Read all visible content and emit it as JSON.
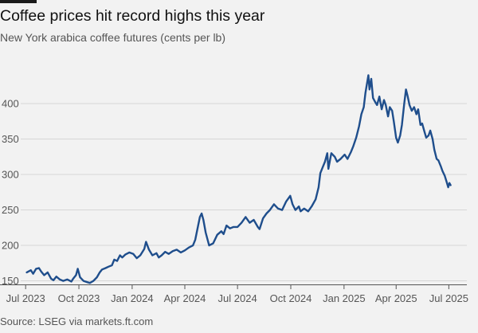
{
  "header": {
    "title": "Coffee prices hit record highs this year",
    "subtitle": "New York arabica coffee futures (cents per lb)"
  },
  "footer": {
    "source": "Source: LSEG via markets.ft.com"
  },
  "colors": {
    "line": "#1f4e8c",
    "grid": "#d6d6d6",
    "axis": "#555555",
    "background": "#f2f2f2"
  },
  "chart_data": {
    "type": "line",
    "title": "Coffee prices hit record highs this year",
    "subtitle": "New York arabica coffee futures (cents per lb)",
    "xlabel": "",
    "ylabel": "",
    "grid": true,
    "legend": "none",
    "ylim": [
      145,
      445
    ],
    "xlim": [
      "2023-06-28",
      "2025-07-17"
    ],
    "y_ticks": [
      150,
      200,
      250,
      300,
      350,
      400
    ],
    "x_ticks": [
      {
        "date": "2023-07-01",
        "label": "Jul 2023"
      },
      {
        "date": "2023-10-01",
        "label": "Oct 2023"
      },
      {
        "date": "2024-01-01",
        "label": "Jan 2024"
      },
      {
        "date": "2024-04-01",
        "label": "Apr 2024"
      },
      {
        "date": "2024-07-01",
        "label": "Jul 2024"
      },
      {
        "date": "2024-10-01",
        "label": "Oct 2024"
      },
      {
        "date": "2025-01-01",
        "label": "Jan 2025"
      },
      {
        "date": "2025-04-01",
        "label": "Apr 2025"
      },
      {
        "date": "2025-07-01",
        "label": "Jul 2025"
      }
    ],
    "series": [
      {
        "points": [
          [
            "2023-07-03",
            162
          ],
          [
            "2023-07-10",
            165
          ],
          [
            "2023-07-14",
            160
          ],
          [
            "2023-07-19",
            167
          ],
          [
            "2023-07-24",
            168
          ],
          [
            "2023-07-28",
            163
          ],
          [
            "2023-08-02",
            158
          ],
          [
            "2023-08-08",
            162
          ],
          [
            "2023-08-14",
            153
          ],
          [
            "2023-08-18",
            151
          ],
          [
            "2023-08-23",
            156
          ],
          [
            "2023-08-29",
            152
          ],
          [
            "2023-09-04",
            150
          ],
          [
            "2023-09-11",
            152
          ],
          [
            "2023-09-18",
            149
          ],
          [
            "2023-09-21",
            153
          ],
          [
            "2023-09-26",
            158
          ],
          [
            "2023-09-29",
            167
          ],
          [
            "2023-10-03",
            155
          ],
          [
            "2023-10-09",
            150
          ],
          [
            "2023-10-16",
            148
          ],
          [
            "2023-10-20",
            147
          ],
          [
            "2023-10-26",
            150
          ],
          [
            "2023-11-01",
            155
          ],
          [
            "2023-11-06",
            162
          ],
          [
            "2023-11-10",
            166
          ],
          [
            "2023-11-16",
            168
          ],
          [
            "2023-11-21",
            170
          ],
          [
            "2023-11-27",
            172
          ],
          [
            "2023-12-01",
            180
          ],
          [
            "2023-12-06",
            178
          ],
          [
            "2023-12-11",
            186
          ],
          [
            "2023-12-15",
            183
          ],
          [
            "2023-12-20",
            187
          ],
          [
            "2023-12-27",
            190
          ],
          [
            "2024-01-03",
            188
          ],
          [
            "2024-01-09",
            182
          ],
          [
            "2024-01-15",
            186
          ],
          [
            "2024-01-22",
            195
          ],
          [
            "2024-01-25",
            205
          ],
          [
            "2024-01-30",
            194
          ],
          [
            "2024-02-05",
            186
          ],
          [
            "2024-02-12",
            189
          ],
          [
            "2024-02-16",
            183
          ],
          [
            "2024-02-21",
            186
          ],
          [
            "2024-02-27",
            191
          ],
          [
            "2024-03-04",
            188
          ],
          [
            "2024-03-11",
            192
          ],
          [
            "2024-03-18",
            194
          ],
          [
            "2024-03-25",
            190
          ],
          [
            "2024-04-01",
            193
          ],
          [
            "2024-04-08",
            197
          ],
          [
            "2024-04-15",
            200
          ],
          [
            "2024-04-19",
            208
          ],
          [
            "2024-04-24",
            228
          ],
          [
            "2024-04-27",
            240
          ],
          [
            "2024-04-30",
            245
          ],
          [
            "2024-05-03",
            236
          ],
          [
            "2024-05-07",
            218
          ],
          [
            "2024-05-13",
            200
          ],
          [
            "2024-05-20",
            203
          ],
          [
            "2024-05-27",
            215
          ],
          [
            "2024-06-03",
            220
          ],
          [
            "2024-06-07",
            216
          ],
          [
            "2024-06-12",
            228
          ],
          [
            "2024-06-18",
            224
          ],
          [
            "2024-06-24",
            226
          ],
          [
            "2024-07-01",
            226
          ],
          [
            "2024-07-08",
            232
          ],
          [
            "2024-07-15",
            240
          ],
          [
            "2024-07-22",
            232
          ],
          [
            "2024-07-29",
            236
          ],
          [
            "2024-08-05",
            226
          ],
          [
            "2024-08-08",
            223
          ],
          [
            "2024-08-14",
            238
          ],
          [
            "2024-08-20",
            245
          ],
          [
            "2024-08-26",
            250
          ],
          [
            "2024-09-02",
            258
          ],
          [
            "2024-09-09",
            252
          ],
          [
            "2024-09-16",
            250
          ],
          [
            "2024-09-23",
            262
          ],
          [
            "2024-09-30",
            270
          ],
          [
            "2024-10-04",
            258
          ],
          [
            "2024-10-09",
            250
          ],
          [
            "2024-10-15",
            255
          ],
          [
            "2024-10-18",
            248
          ],
          [
            "2024-10-24",
            252
          ],
          [
            "2024-10-31",
            248
          ],
          [
            "2024-11-06",
            255
          ],
          [
            "2024-11-13",
            265
          ],
          [
            "2024-11-18",
            282
          ],
          [
            "2024-11-21",
            302
          ],
          [
            "2024-11-25",
            310
          ],
          [
            "2024-11-29",
            318
          ],
          [
            "2024-12-03",
            330
          ],
          [
            "2024-12-05",
            308
          ],
          [
            "2024-12-10",
            330
          ],
          [
            "2024-12-16",
            325
          ],
          [
            "2024-12-20",
            318
          ],
          [
            "2024-12-26",
            322
          ],
          [
            "2025-01-02",
            328
          ],
          [
            "2025-01-07",
            322
          ],
          [
            "2025-01-13",
            332
          ],
          [
            "2025-01-17",
            340
          ],
          [
            "2025-01-22",
            352
          ],
          [
            "2025-01-27",
            368
          ],
          [
            "2025-01-31",
            385
          ],
          [
            "2025-02-04",
            395
          ],
          [
            "2025-02-07",
            415
          ],
          [
            "2025-02-10",
            430
          ],
          [
            "2025-02-12",
            440
          ],
          [
            "2025-02-14",
            420
          ],
          [
            "2025-02-17",
            435
          ],
          [
            "2025-02-20",
            408
          ],
          [
            "2025-02-24",
            402
          ],
          [
            "2025-02-27",
            398
          ],
          [
            "2025-03-03",
            410
          ],
          [
            "2025-03-07",
            392
          ],
          [
            "2025-03-11",
            405
          ],
          [
            "2025-03-14",
            398
          ],
          [
            "2025-03-18",
            382
          ],
          [
            "2025-03-21",
            395
          ],
          [
            "2025-03-25",
            390
          ],
          [
            "2025-03-28",
            375
          ],
          [
            "2025-04-01",
            352
          ],
          [
            "2025-04-04",
            345
          ],
          [
            "2025-04-08",
            355
          ],
          [
            "2025-04-11",
            370
          ],
          [
            "2025-04-15",
            400
          ],
          [
            "2025-04-18",
            420
          ],
          [
            "2025-04-21",
            410
          ],
          [
            "2025-04-24",
            398
          ],
          [
            "2025-04-28",
            390
          ],
          [
            "2025-05-02",
            395
          ],
          [
            "2025-05-06",
            385
          ],
          [
            "2025-05-09",
            392
          ],
          [
            "2025-05-13",
            370
          ],
          [
            "2025-05-16",
            372
          ],
          [
            "2025-05-20",
            360
          ],
          [
            "2025-05-23",
            352
          ],
          [
            "2025-05-27",
            355
          ],
          [
            "2025-05-30",
            362
          ],
          [
            "2025-06-03",
            350
          ],
          [
            "2025-06-06",
            335
          ],
          [
            "2025-06-10",
            322
          ],
          [
            "2025-06-13",
            320
          ],
          [
            "2025-06-17",
            312
          ],
          [
            "2025-06-20",
            305
          ],
          [
            "2025-06-24",
            298
          ],
          [
            "2025-06-27",
            290
          ],
          [
            "2025-06-30",
            282
          ],
          [
            "2025-07-02",
            288
          ],
          [
            "2025-07-04",
            285
          ]
        ]
      }
    ]
  }
}
